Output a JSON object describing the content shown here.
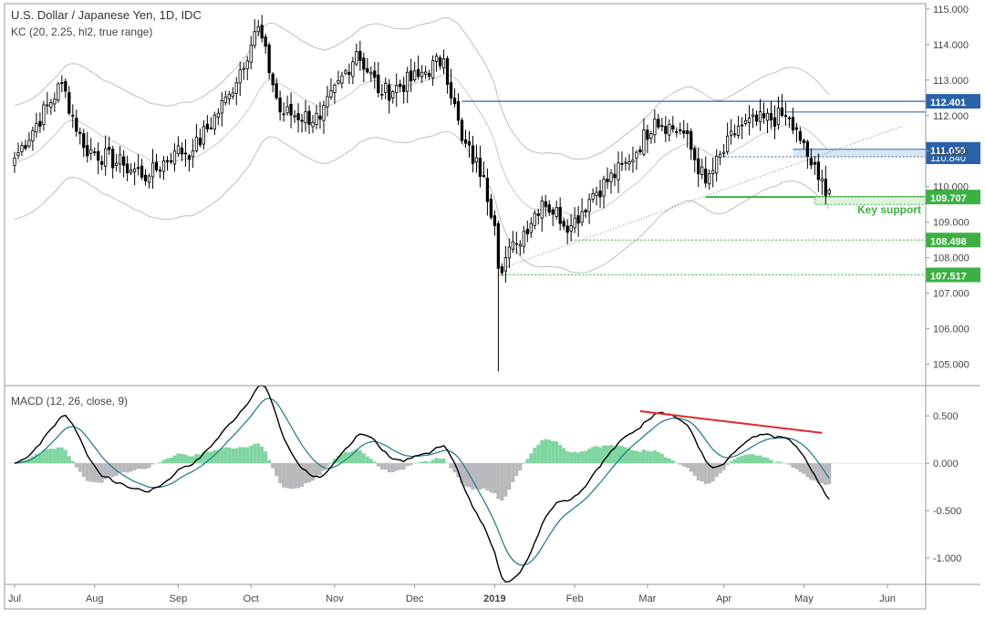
{
  "header": {
    "title": "U.S. Dollar / Japanese Yen, 1D, IDC",
    "indicator": "KC (20, 2.25, hl2, true range)",
    "macd_label": "MACD (12, 26, close, 9)"
  },
  "colors": {
    "up": "#ffffff",
    "down": "#000000",
    "candle_outline": "#000000",
    "keltner": "#c8c8c8",
    "resistance": "#2962a8",
    "support": "#3cb043",
    "support_label_bg": "#3cb043",
    "resistance_label_bg": "#2962a8",
    "macd_line": "#000000",
    "signal_line": "#2b7f8c",
    "hist_pos": "#7fd6a0",
    "hist_neg": "#b8b8bd",
    "divergence": "#e8242a",
    "trendline": "#888888",
    "grid_border": "#999999"
  },
  "chart_data": [
    {
      "type": "candlestick",
      "title": "U.S. Dollar / Japanese Yen, 1D, IDC",
      "ylim": [
        104.4,
        115.15
      ],
      "y_ticks": [
        "115.000",
        "114.000",
        "113.000",
        "112.000",
        "111.000",
        "110.000",
        "109.000",
        "108.000",
        "107.000",
        "106.000",
        "105.000"
      ],
      "x_ticks": [
        "Jul",
        "Aug",
        "Sep",
        "Oct",
        "Nov",
        "Dec",
        "2019",
        "Feb",
        "Mar",
        "Apr",
        "May",
        "Jun"
      ],
      "date_range": [
        "2018-07-02",
        "2019-05-10"
      ],
      "close_anchors": [
        {
          "date": "2018-07-02",
          "close": 110.8
        },
        {
          "date": "2018-07-19",
          "close": 112.9
        },
        {
          "date": "2018-07-27",
          "close": 111.1
        },
        {
          "date": "2018-08-13",
          "close": 110.6
        },
        {
          "date": "2018-08-22",
          "close": 110.3
        },
        {
          "date": "2018-08-31",
          "close": 111.0
        },
        {
          "date": "2018-09-07",
          "close": 111.0
        },
        {
          "date": "2018-09-21",
          "close": 112.6
        },
        {
          "date": "2018-10-03",
          "close": 114.5
        },
        {
          "date": "2018-10-11",
          "close": 112.1
        },
        {
          "date": "2018-10-26",
          "close": 111.9
        },
        {
          "date": "2018-11-09",
          "close": 113.8
        },
        {
          "date": "2018-11-20",
          "close": 112.6
        },
        {
          "date": "2018-12-04",
          "close": 113.1
        },
        {
          "date": "2018-12-13",
          "close": 113.6
        },
        {
          "date": "2018-12-20",
          "close": 111.3
        },
        {
          "date": "2018-12-28",
          "close": 110.3
        },
        {
          "date": "2019-01-02",
          "close": 108.9
        },
        {
          "date": "2019-01-03",
          "close": 107.7
        },
        {
          "date": "2019-01-10",
          "close": 108.4
        },
        {
          "date": "2019-01-21",
          "close": 109.6
        },
        {
          "date": "2019-01-31",
          "close": 108.9
        },
        {
          "date": "2019-02-08",
          "close": 109.8
        },
        {
          "date": "2019-02-22",
          "close": 110.7
        },
        {
          "date": "2019-03-05",
          "close": 111.9
        },
        {
          "date": "2019-03-15",
          "close": 111.5
        },
        {
          "date": "2019-03-25",
          "close": 110.1
        },
        {
          "date": "2019-04-05",
          "close": 111.7
        },
        {
          "date": "2019-04-24",
          "close": 112.0
        },
        {
          "date": "2019-04-30",
          "close": 111.3
        },
        {
          "date": "2019-05-07",
          "close": 110.2
        },
        {
          "date": "2019-05-10",
          "close": 109.9
        }
      ],
      "low_spike": {
        "date": "2019-01-03",
        "low": 104.8
      },
      "keltner_width": 1.6,
      "horizontal_levels": [
        {
          "label": "112.401",
          "value": 112.401,
          "style": "solid",
          "color_key": "resistance",
          "from_date": "2018-12-20"
        },
        {
          "label": "111.050",
          "value": 111.05,
          "style": "zone",
          "color_key": "resistance",
          "from_date": "2019-04-26",
          "secondary_value": 110.84,
          "secondary_label": "110.840"
        },
        {
          "label": "109.707",
          "value": 109.707,
          "style": "solid",
          "color_key": "support",
          "from_date": "2019-03-25"
        },
        {
          "label": "108.498",
          "value": 108.498,
          "style": "dotted",
          "color_key": "support",
          "from_date": "2019-01-31"
        },
        {
          "label": "107.517",
          "value": 107.517,
          "style": "dotted",
          "color_key": "support",
          "from_date": "2019-01-03"
        }
      ],
      "key_support": {
        "label": "Key support",
        "top": 109.707,
        "bottom": 109.55,
        "from_date": "2019-05-06"
      },
      "trendline": {
        "from_date": "2019-01-04",
        "from_value": 107.7,
        "to_date": "2019-06-07",
        "to_value": 111.7
      }
    },
    {
      "type": "macd",
      "title": "MACD (12, 26, close, 9)",
      "ylim": [
        -1.28,
        0.82
      ],
      "y_ticks": [
        "0.500",
        "0.000",
        "-0.500",
        "-1.000"
      ],
      "divergence_line": {
        "from_date": "2019-02-27",
        "from_value": 0.55,
        "to_date": "2019-05-08",
        "to_value": 0.32
      }
    }
  ]
}
